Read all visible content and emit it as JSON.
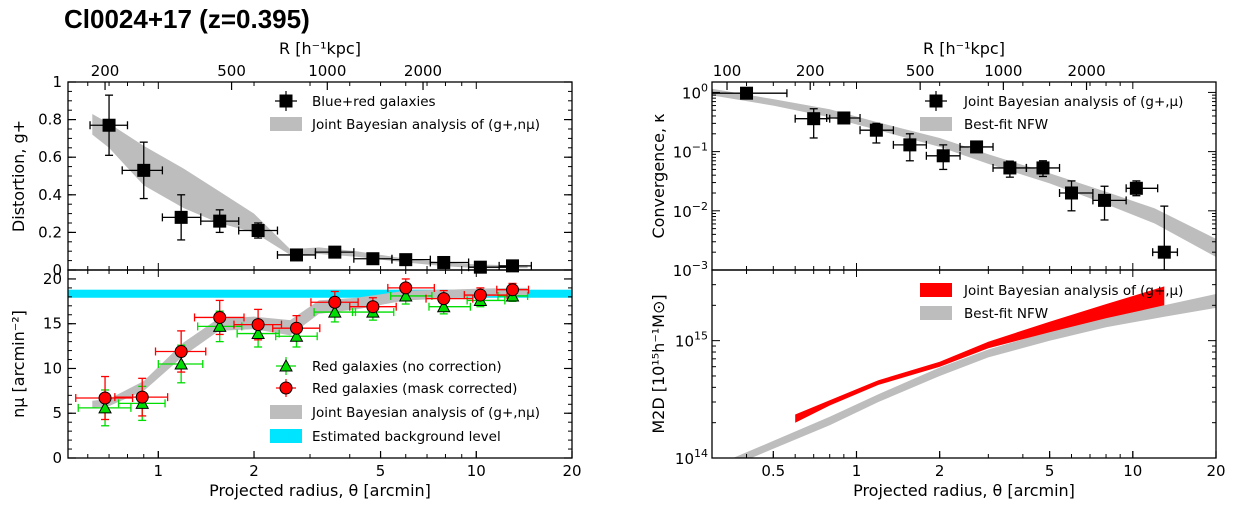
{
  "figure_title": "Cl0024+17 (z=0.395)",
  "colors": {
    "band": "#bdbdbd",
    "red": "#ff0000",
    "green": "#00dd00",
    "cyan": "#00e5ff",
    "black": "#000000"
  },
  "chart_data": [
    {
      "id": "left-top",
      "type": "scatter",
      "xlabel": "",
      "ylabel": "Distortion, g+",
      "xscale": "log",
      "xlim": [
        0.52,
        20
      ],
      "ylim": [
        0,
        1
      ],
      "yticks": [
        0,
        0.2,
        0.4,
        0.6,
        0.8,
        1
      ],
      "ytick_labels": [
        "0",
        "0.2",
        "0.4",
        "0.6",
        "0.8",
        "1"
      ],
      "top_axis": {
        "label": "R [h⁻¹kpc]",
        "ticks": [
          200,
          500,
          1000,
          2000
        ],
        "tick_labels": [
          "200",
          "500",
          "1000",
          "2000"
        ],
        "tick_x_arcmin": [
          0.68,
          1.7,
          3.4,
          6.8
        ]
      },
      "legend_position": "top-right",
      "series": [
        {
          "name": "Blue+red galaxies",
          "marker": "square",
          "color": "#000000",
          "x": [
            0.7,
            0.9,
            1.18,
            1.56,
            2.06,
            2.72,
            3.59,
            4.73,
            6.0,
            7.9,
            10.3,
            13.0
          ],
          "xlo": [
            0.61,
            0.77,
            1.03,
            1.36,
            1.79,
            2.37,
            3.12,
            4.12,
            5.43,
            7.17,
            9.46,
            11.8
          ],
          "xhi": [
            0.8,
            1.03,
            1.36,
            1.79,
            2.37,
            3.12,
            4.12,
            5.43,
            7.17,
            9.46,
            12.5,
            14.9
          ],
          "y": [
            0.77,
            0.53,
            0.28,
            0.26,
            0.21,
            0.08,
            0.095,
            0.06,
            0.055,
            0.04,
            0.015,
            0.022
          ],
          "err": [
            0.16,
            0.15,
            0.12,
            0.06,
            0.04,
            0.025,
            0.02,
            0.018,
            0.015,
            0.012,
            0.01,
            0.01
          ]
        },
        {
          "name": "Joint Bayesian analysis of (g+,nμ)",
          "type": "band",
          "color": "#bdbdbd",
          "x": [
            0.62,
            0.7,
            0.9,
            1.2,
            1.55,
            2.0,
            2.6,
            3.2,
            4.2,
            6,
            8,
            10,
            13,
            14.5
          ],
          "lo": [
            0.72,
            0.65,
            0.45,
            0.33,
            0.25,
            0.2,
            0.08,
            0.085,
            0.07,
            0.04,
            0.02,
            0.01,
            0.01,
            0.01
          ],
          "hi": [
            0.83,
            0.78,
            0.66,
            0.54,
            0.42,
            0.3,
            0.11,
            0.12,
            0.1,
            0.06,
            0.04,
            0.03,
            0.025,
            0.025
          ]
        }
      ]
    },
    {
      "id": "left-bottom",
      "type": "scatter",
      "xlabel": "Projected radius, θ [arcmin]",
      "ylabel": "nμ [arcmin⁻²]",
      "xscale": "log",
      "xlim": [
        0.52,
        20
      ],
      "ylim": [
        0,
        21
      ],
      "xticks": [
        1,
        2,
        5,
        10,
        20
      ],
      "xtick_labels": [
        "1",
        "2",
        "5",
        "10",
        "20"
      ],
      "yticks": [
        0,
        5,
        10,
        15,
        20
      ],
      "ytick_labels": [
        "0",
        "5",
        "10",
        "15",
        "20"
      ],
      "legend_position": "bottom-right",
      "series": [
        {
          "name": "Red galaxies (no correction)",
          "marker": "triangle",
          "color": "#00dd00",
          "x": [
            0.68,
            0.89,
            1.18,
            1.56,
            2.06,
            2.72,
            3.59,
            4.73,
            6.0,
            7.9,
            10.3,
            13.0
          ],
          "xlo": [
            0.56,
            0.75,
            1.0,
            1.33,
            1.77,
            2.34,
            3.09,
            4.08,
            5.38,
            7.1,
            9.36,
            11.7
          ],
          "xhi": [
            0.82,
            1.05,
            1.38,
            1.83,
            2.4,
            3.16,
            4.17,
            5.5,
            7.25,
            9.58,
            12.3,
            14.5
          ],
          "y": [
            5.6,
            6.1,
            10.5,
            14.7,
            13.9,
            13.6,
            16.3,
            16.3,
            18.1,
            16.9,
            17.6,
            18.1
          ],
          "err": [
            2.0,
            1.9,
            2.1,
            1.7,
            1.5,
            1.2,
            1.1,
            0.9,
            0.9,
            0.8,
            0.7,
            0.6
          ]
        },
        {
          "name": "Red galaxies (mask corrected)",
          "marker": "circle",
          "color": "#ff0000",
          "x": [
            0.68,
            0.89,
            1.18,
            1.56,
            2.06,
            2.72,
            3.59,
            4.73,
            6.0,
            7.9,
            10.3,
            13.0
          ],
          "xlo": [
            0.55,
            0.73,
            0.98,
            1.3,
            1.73,
            2.29,
            3.02,
            4.0,
            5.27,
            6.95,
            9.17,
            11.6
          ],
          "xhi": [
            0.83,
            1.07,
            1.41,
            1.86,
            2.44,
            3.22,
            4.25,
            5.6,
            7.38,
            9.75,
            12.5,
            14.6
          ],
          "y": [
            6.7,
            6.8,
            11.9,
            15.7,
            14.9,
            14.5,
            17.4,
            16.9,
            19.0,
            17.8,
            18.2,
            18.8
          ],
          "err": [
            2.4,
            2.1,
            2.3,
            1.9,
            1.7,
            1.4,
            1.2,
            1.0,
            1.0,
            0.9,
            0.8,
            0.7
          ]
        },
        {
          "name": "Joint Bayesian analysis of (g+,nμ)",
          "type": "band",
          "color": "#bdbdbd",
          "x": [
            0.62,
            0.7,
            0.9,
            1.2,
            1.55,
            2.0,
            2.6,
            3.2,
            4.2,
            6,
            8,
            10,
            13,
            14.5
          ],
          "lo": [
            5.6,
            5.8,
            7.5,
            11.4,
            14.2,
            14.4,
            13.7,
            16.1,
            16.6,
            17.6,
            17.8,
            18.0,
            18.2,
            18.2
          ],
          "hi": [
            6.4,
            6.6,
            8.6,
            12.9,
            15.6,
            15.8,
            15.4,
            17.6,
            17.9,
            18.7,
            18.8,
            18.9,
            19.0,
            19.0
          ]
        },
        {
          "name": "Estimated background level",
          "type": "hband",
          "color": "#00e5ff",
          "lo": 17.9,
          "hi": 18.8
        }
      ]
    },
    {
      "id": "right-top",
      "type": "scatter",
      "xlabel": "",
      "ylabel": "Convergence, κ",
      "xscale": "log",
      "yscale": "log",
      "xlim": [
        0.3,
        20
      ],
      "ylim": [
        0.001,
        1.5
      ],
      "yticks": [
        1,
        0.1,
        0.01,
        0.001
      ],
      "ytick_labels": [
        {
          "b": "10",
          "e": "0"
        },
        {
          "b": "10",
          "e": "−1"
        },
        {
          "b": "10",
          "e": "−2"
        },
        {
          "b": "10",
          "e": "−3"
        }
      ],
      "top_axis": {
        "label": "R [h⁻¹kpc]",
        "ticks": [
          100,
          200,
          500,
          1000,
          2000
        ],
        "tick_labels": [
          "100",
          "200",
          "500",
          "1000",
          "2000"
        ],
        "tick_x_arcmin": [
          0.34,
          0.68,
          1.7,
          3.4,
          6.8
        ]
      },
      "legend_position": "top-right",
      "series": [
        {
          "name": "Joint Bayesian analysis of (g+,μ)",
          "marker": "square",
          "color": "#000000",
          "x": [
            0.4,
            0.7,
            0.9,
            1.18,
            1.56,
            2.06,
            2.72,
            3.59,
            4.73,
            6.0,
            7.9,
            10.3,
            13.0
          ],
          "xlo": [
            0.3,
            0.6,
            0.78,
            1.03,
            1.36,
            1.79,
            2.37,
            3.12,
            4.12,
            5.43,
            7.17,
            9.46,
            11.8
          ],
          "xhi": [
            0.56,
            0.8,
            1.03,
            1.36,
            1.79,
            2.37,
            3.12,
            4.12,
            5.43,
            7.17,
            9.46,
            12.3,
            14.5
          ],
          "y": [
            0.97,
            0.36,
            0.37,
            0.23,
            0.13,
            0.085,
            0.12,
            0.053,
            0.053,
            0.02,
            0.015,
            0.024,
            0.002
          ],
          "ylo": [
            0.97,
            0.17,
            0.3,
            0.14,
            0.07,
            0.05,
            0.11,
            0.037,
            0.038,
            0.01,
            0.007,
            0.018,
            0.001
          ],
          "yhi": [
            1.05,
            0.53,
            0.45,
            0.3,
            0.2,
            0.13,
            0.13,
            0.069,
            0.07,
            0.032,
            0.026,
            0.032,
            0.012
          ]
        },
        {
          "name": "Best-fit NFW",
          "type": "band",
          "color": "#bdbdbd",
          "x": [
            0.3,
            0.5,
            0.8,
            1.2,
            2,
            3,
            5,
            8,
            12,
            20
          ],
          "lo": [
            0.89,
            0.6,
            0.38,
            0.23,
            0.12,
            0.062,
            0.029,
            0.013,
            0.0061,
            0.00166
          ],
          "hi": [
            1.15,
            0.77,
            0.52,
            0.31,
            0.17,
            0.09,
            0.043,
            0.021,
            0.011,
            0.00335
          ]
        }
      ]
    },
    {
      "id": "right-bottom",
      "type": "area",
      "xlabel": "Projected radius, θ [arcmin]",
      "ylabel": "M2D [10¹⁵h⁻¹M⊙]",
      "xscale": "log",
      "yscale": "log",
      "xlim": [
        0.3,
        20
      ],
      "ylim": [
        100000000000000.0,
        4000000000000000.0
      ],
      "xticks": [
        0.5,
        1,
        2,
        5,
        10,
        20
      ],
      "xtick_labels": [
        "0.5",
        "1",
        "2",
        "5",
        "10",
        "20"
      ],
      "yticks": [
        100000000000000.0,
        1000000000000000.0
      ],
      "ytick_labels": [
        {
          "b": "10",
          "e": "14"
        },
        {
          "b": "10",
          "e": "15"
        }
      ],
      "legend_position": "top-right",
      "series": [
        {
          "name": "Joint Bayesian analysis of (g+,μ)",
          "type": "band",
          "color": "#ff0000",
          "x": [
            0.6,
            0.8,
            1.2,
            2,
            3,
            5,
            8,
            13
          ],
          "lo": [
            200000000000000.0,
            280000000000000.0,
            420000000000000.0,
            600000000000000.0,
            860000000000000.0,
            1180000000000000.0,
            1550000000000000.0,
            2000000000000000.0
          ],
          "hi": [
            235000000000000.0,
            310000000000000.0,
            460000000000000.0,
            660000000000000.0,
            980000000000000.0,
            1450000000000000.0,
            2050000000000000.0,
            2900000000000000.0
          ]
        },
        {
          "name": "Best-fit NFW",
          "type": "band",
          "color": "#bdbdbd",
          "x": [
            0.3,
            0.5,
            0.8,
            1.2,
            2,
            3,
            5,
            8,
            13,
            20
          ],
          "lo": [
            72000000000000.0,
            120000000000000.0,
            190000000000000.0,
            300000000000000.0,
            500000000000000.0,
            720000000000000.0,
            1000000000000000.0,
            1300000000000000.0,
            1600000000000000.0,
            1900000000000000.0
          ],
          "hi": [
            84000000000000.0,
            140000000000000.0,
            225000000000000.0,
            350000000000000.0,
            590000000000000.0,
            840000000000000.0,
            1200000000000000.0,
            1600000000000000.0,
            2000000000000000.0,
            2500000000000000.0
          ]
        }
      ]
    }
  ]
}
